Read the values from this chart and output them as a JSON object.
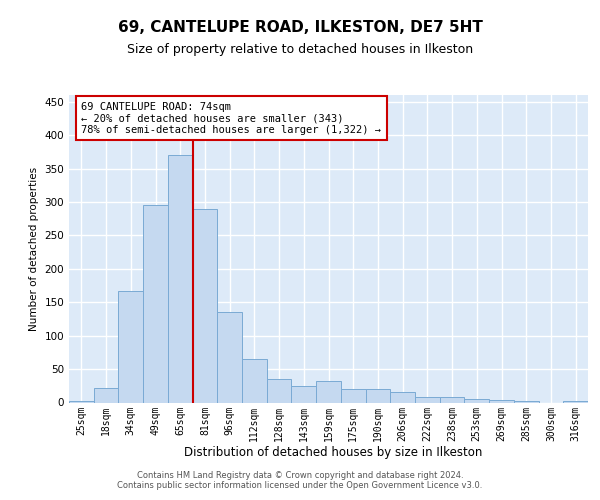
{
  "title1": "69, CANTELUPE ROAD, ILKESTON, DE7 5HT",
  "title2": "Size of property relative to detached houses in Ilkeston",
  "xlabel": "Distribution of detached houses by size in Ilkeston",
  "ylabel": "Number of detached properties",
  "categories": [
    "25sqm",
    "18sqm",
    "34sqm",
    "49sqm",
    "65sqm",
    "81sqm",
    "96sqm",
    "112sqm",
    "128sqm",
    "143sqm",
    "159sqm",
    "175sqm",
    "190sqm",
    "206sqm",
    "222sqm",
    "238sqm",
    "253sqm",
    "269sqm",
    "285sqm",
    "300sqm",
    "316sqm"
  ],
  "values": [
    2,
    22,
    167,
    295,
    370,
    290,
    135,
    65,
    35,
    25,
    32,
    20,
    20,
    15,
    8,
    8,
    5,
    3,
    2,
    0,
    2
  ],
  "bar_color": "#c5d9f0",
  "bar_edge_color": "#7aaad4",
  "vline_color": "#cc0000",
  "vline_pos": 4.5,
  "annotation_line1": "69 CANTELUPE ROAD: 74sqm",
  "annotation_line2": "← 20% of detached houses are smaller (343)",
  "annotation_line3": "78% of semi-detached houses are larger (1,322) →",
  "annotation_box_color": "white",
  "annotation_box_edge": "#cc0000",
  "footer1": "Contains HM Land Registry data © Crown copyright and database right 2024.",
  "footer2": "Contains public sector information licensed under the Open Government Licence v3.0.",
  "ylim": [
    0,
    460
  ],
  "yticks": [
    0,
    50,
    100,
    150,
    200,
    250,
    300,
    350,
    400,
    450
  ],
  "bg_color": "#ddeaf8"
}
